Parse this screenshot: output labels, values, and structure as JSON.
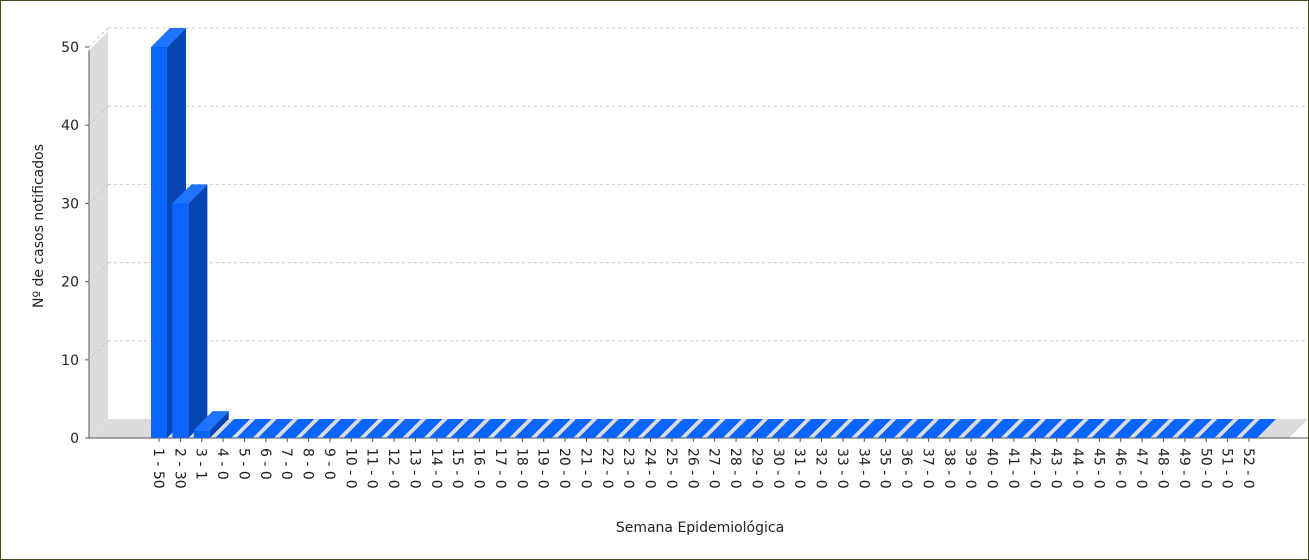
{
  "chart_data": {
    "type": "bar",
    "style": "3d",
    "xlabel": "Semana Epidemiológica",
    "ylabel": "Nº de casos notificados",
    "ylim": [
      0,
      52
    ],
    "yticks": [
      0,
      10,
      20,
      30,
      40,
      50
    ],
    "grid": true,
    "categories": [
      "1 - 50",
      "2 - 30",
      "3 - 1",
      "4 - 0",
      "5 - 0",
      "6 - 0",
      "7 - 0",
      "8 - 0",
      "9 - 0",
      "10 - 0",
      "11 - 0",
      "12 - 0",
      "13 - 0",
      "14 - 0",
      "15 - 0",
      "16 - 0",
      "17 - 0",
      "18 - 0",
      "19 - 0",
      "20 - 0",
      "21 - 0",
      "22 - 0",
      "23 - 0",
      "24 - 0",
      "25 - 0",
      "26 - 0",
      "27 - 0",
      "28 - 0",
      "29 - 0",
      "30 - 0",
      "31 - 0",
      "32 - 0",
      "33 - 0",
      "34 - 0",
      "35 - 0",
      "36 - 0",
      "37 - 0",
      "38 - 0",
      "39 - 0",
      "40 - 0",
      "41 - 0",
      "42 - 0",
      "43 - 0",
      "44 - 0",
      "45 - 0",
      "46 - 0",
      "47 - 0",
      "48 - 0",
      "49 - 0",
      "50 - 0",
      "51 - 0",
      "52 - 0"
    ],
    "values": [
      50,
      30,
      1,
      0,
      0,
      0,
      0,
      0,
      0,
      0,
      0,
      0,
      0,
      0,
      0,
      0,
      0,
      0,
      0,
      0,
      0,
      0,
      0,
      0,
      0,
      0,
      0,
      0,
      0,
      0,
      0,
      0,
      0,
      0,
      0,
      0,
      0,
      0,
      0,
      0,
      0,
      0,
      0,
      0,
      0,
      0,
      0,
      0,
      0,
      0,
      0,
      0
    ],
    "colors": {
      "bar_front": "#0a64ff",
      "bar_top": "#1f74ff",
      "bar_side": "#0646b4",
      "wall": "#dcdcdc",
      "grid": "#c8c8c8"
    }
  }
}
